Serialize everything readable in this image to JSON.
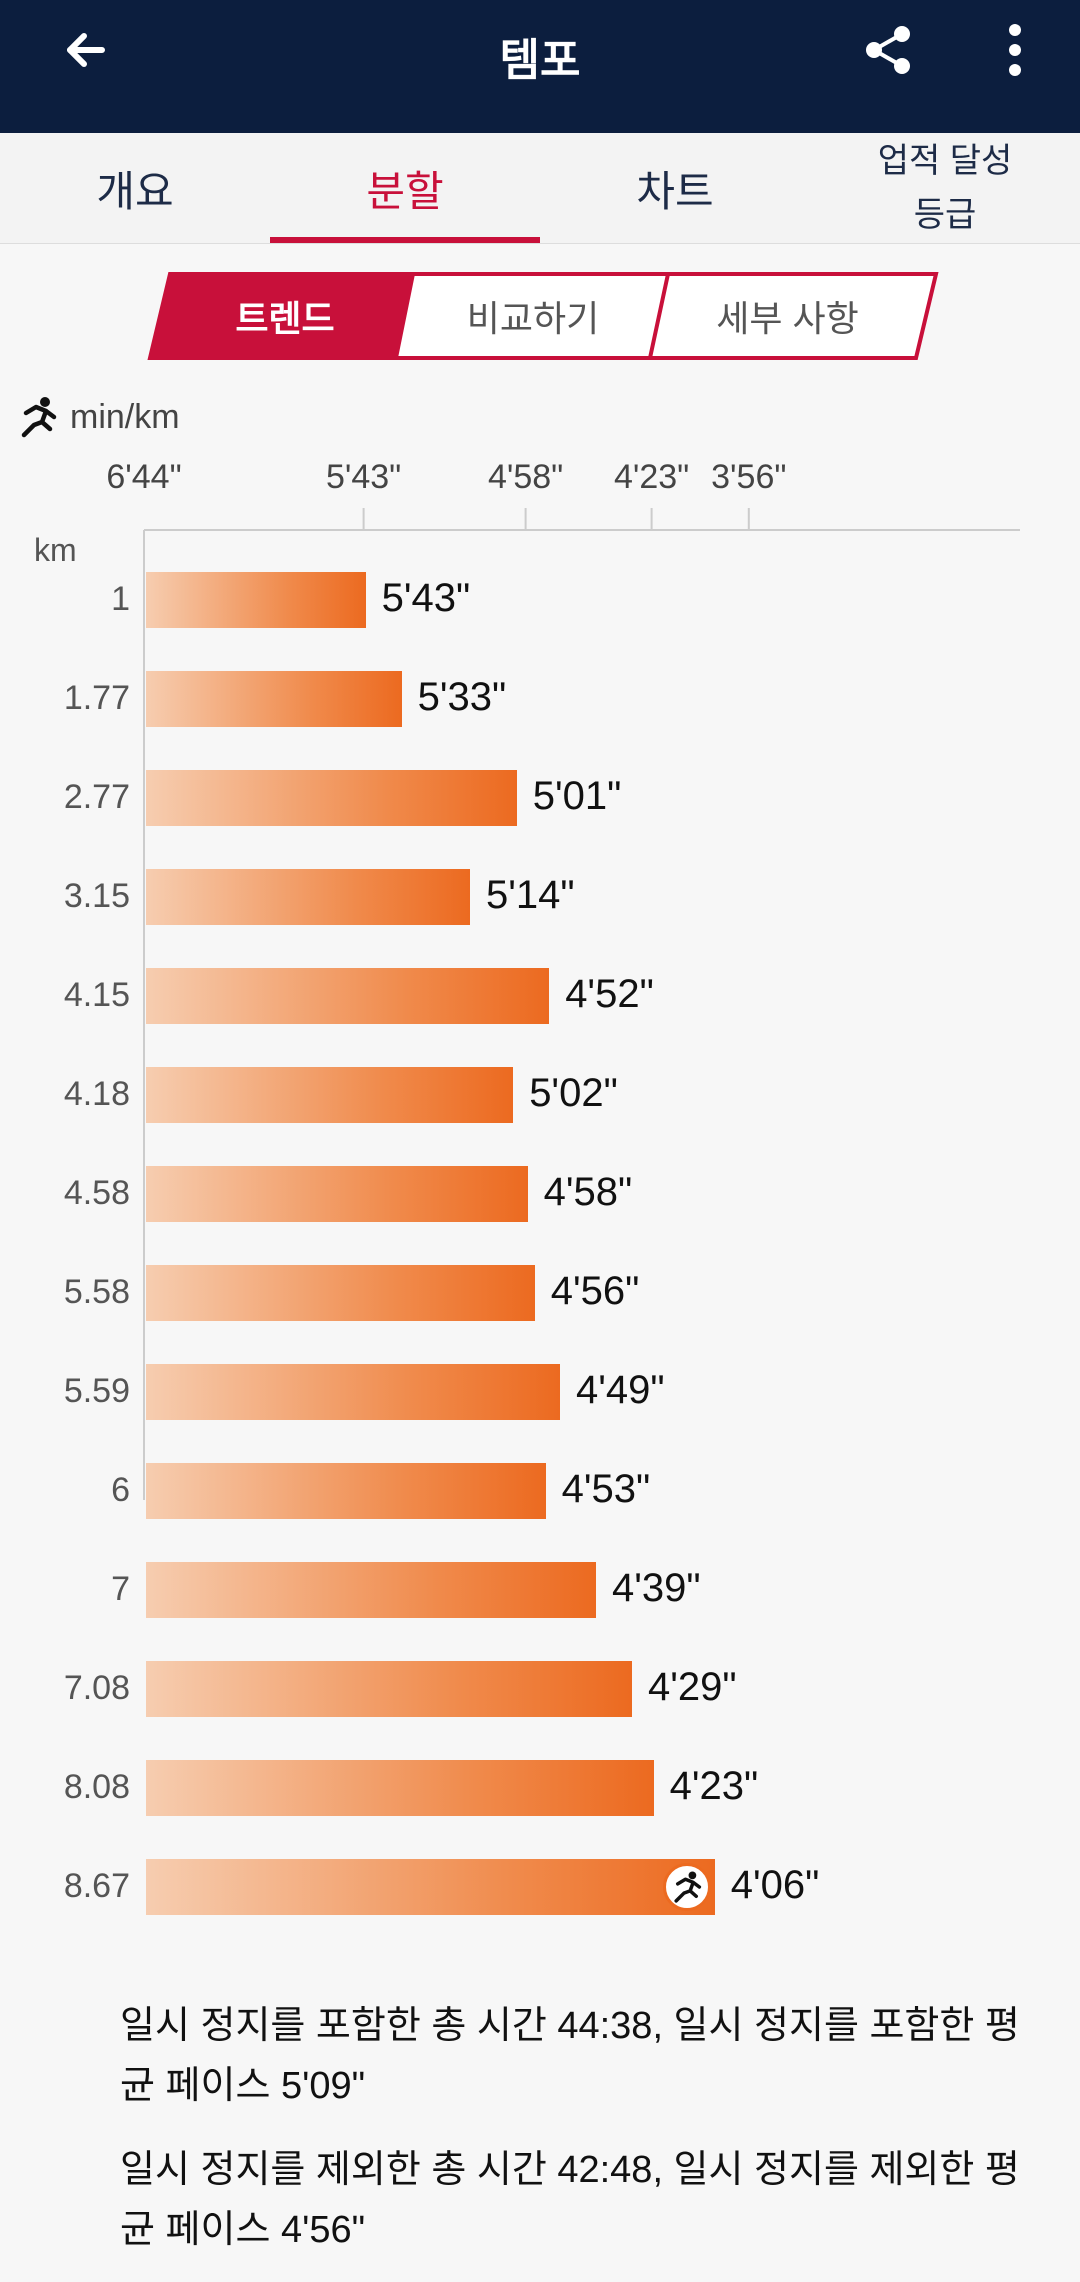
{
  "header": {
    "title": "템포",
    "back_icon": "arrow-left-icon",
    "share_icon": "share-icon",
    "more_icon": "more-vertical-icon"
  },
  "tabs": [
    {
      "label": "개요",
      "active": false
    },
    {
      "label": "분할",
      "active": true
    },
    {
      "label": "차트",
      "active": false
    },
    {
      "label": "업적 달성\n등급",
      "active": false
    }
  ],
  "segments": [
    {
      "label": "트렌드",
      "active": true
    },
    {
      "label": "비교하기",
      "active": false
    },
    {
      "label": "세부 사항",
      "active": false
    }
  ],
  "colors": {
    "accent": "#c8103a",
    "header_bg": "#0c1e3e",
    "bar_start": "#f6cdb0",
    "bar_end": "#ec6a20"
  },
  "chart_data": {
    "type": "bar",
    "orientation": "horizontal",
    "unit": "min/km",
    "ylabel": "km",
    "x_ticks": [
      "6'44\"",
      "5'43\"",
      "4'58\"",
      "4'23\"",
      "3'56\""
    ],
    "categories": [
      "1",
      "1.77",
      "2.77",
      "3.15",
      "4.15",
      "4.18",
      "4.58",
      "5.58",
      "5.59",
      "6",
      "7",
      "7.08",
      "8.08",
      "8.67"
    ],
    "values": [
      "5'43\"",
      "5'33\"",
      "5'01\"",
      "5'14\"",
      "4'52\"",
      "5'02\"",
      "4'58\"",
      "4'56\"",
      "4'49\"",
      "4'53\"",
      "4'39\"",
      "4'29\"",
      "4'23\"",
      "4'06\""
    ],
    "fastest_index": 13
  },
  "summary": {
    "line1": "일시 정지를 포함한 총 시간 44:38, 일시 정지를 포함한 평균 페이스 5'09\"",
    "line2": "일시 정지를 제외한 총 시간 42:48, 일시 정지를 제외한 평균 페이스 4'56\""
  }
}
